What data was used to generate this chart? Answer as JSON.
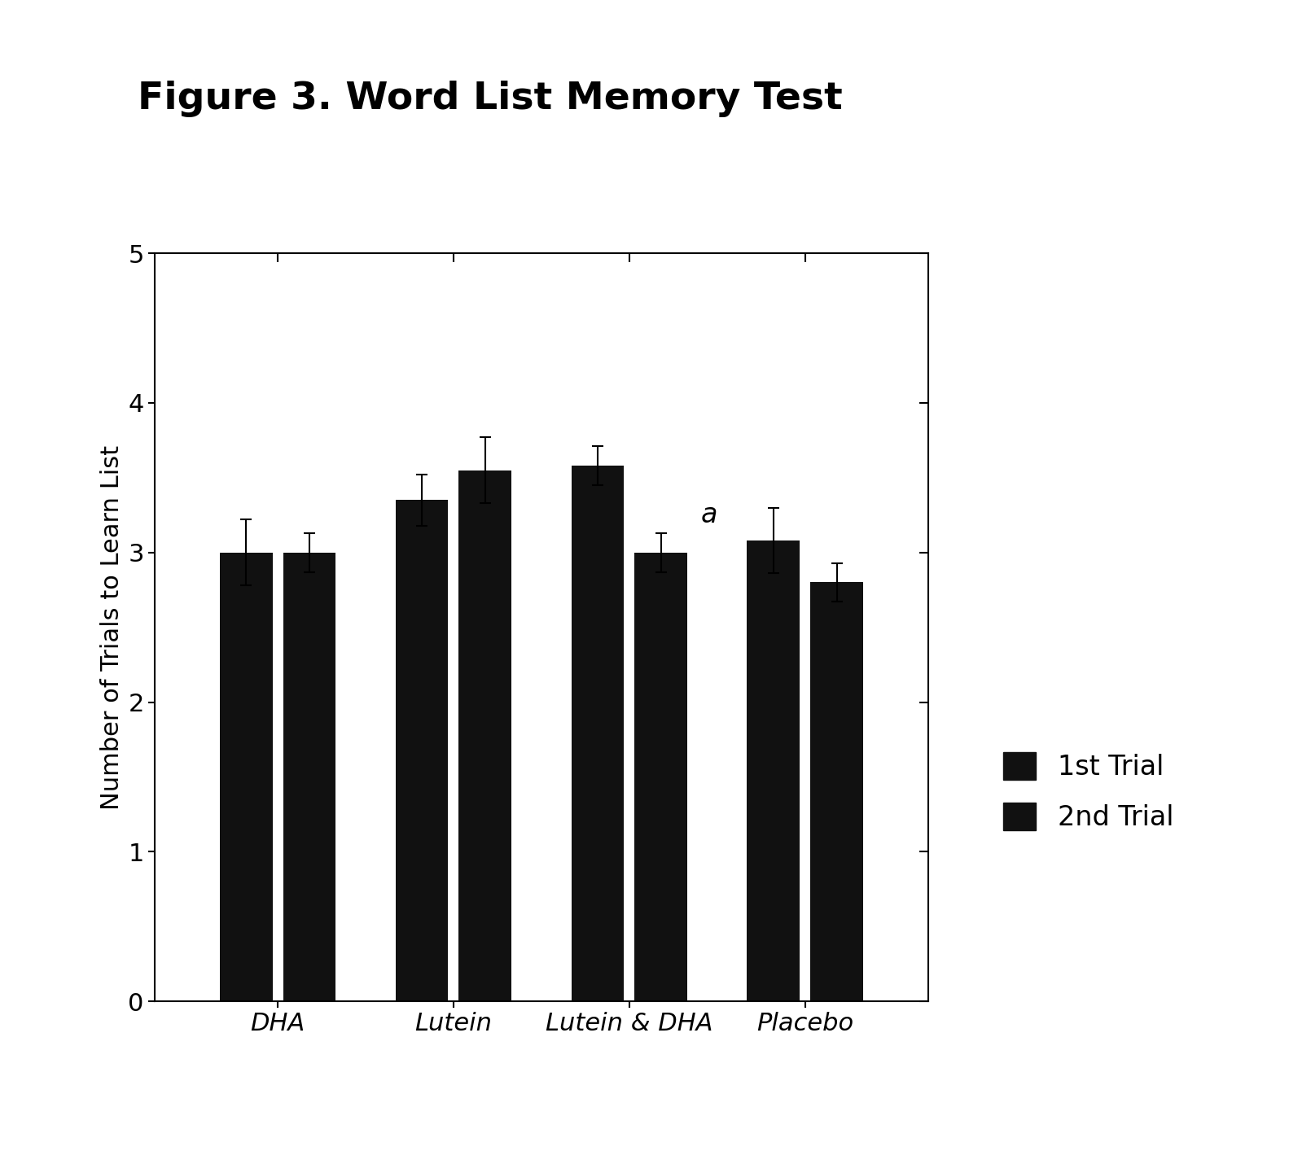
{
  "title": "Figure 3. Word List Memory Test",
  "ylabel": "Number of Trials to Learn List",
  "categories": [
    "DHA",
    "Lutein",
    "Lutein & DHA",
    "Placebo"
  ],
  "bar1_values": [
    3.0,
    3.35,
    3.58,
    3.08
  ],
  "bar2_values": [
    3.0,
    3.55,
    3.0,
    2.8
  ],
  "bar1_errors": [
    0.22,
    0.17,
    0.13,
    0.22
  ],
  "bar2_errors": [
    0.13,
    0.22,
    0.13,
    0.13
  ],
  "bar_color": "#111111",
  "bar_width": 0.3,
  "ylim": [
    0,
    5
  ],
  "yticks": [
    0,
    1,
    2,
    3,
    4,
    5
  ],
  "legend_labels": [
    "1st Trial",
    "2nd Trial"
  ],
  "annotation_text": "a",
  "annotation_group": 2,
  "title_fontsize": 34,
  "label_fontsize": 22,
  "tick_fontsize": 22,
  "legend_fontsize": 24,
  "annotation_fontsize": 24,
  "background_color": "#ffffff"
}
